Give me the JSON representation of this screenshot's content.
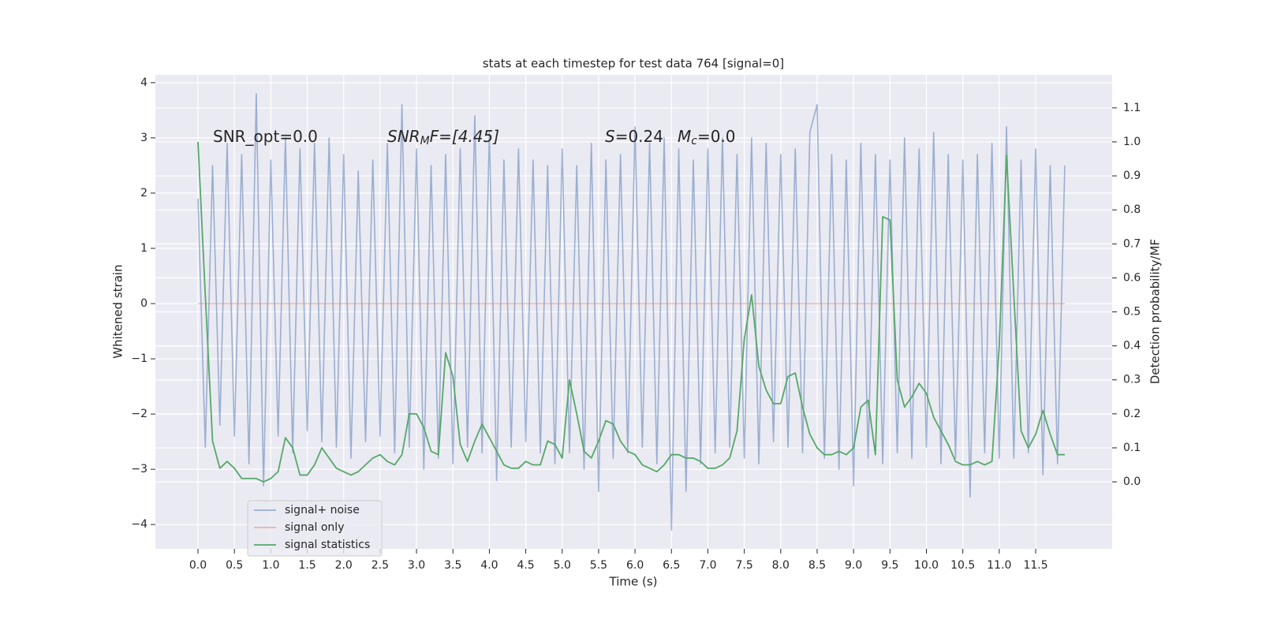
{
  "chart_data": {
    "type": "line",
    "title": "stats at each timestep for test data 764 [signal=0]",
    "xlabel": "Time (s)",
    "ylabel": "Whitened strain",
    "y2label": "Detection probability/MF",
    "annotations": [
      [
        "SNR_opt=0.0"
      ],
      [
        "SNR",
        "M",
        "F=[4.45]"
      ],
      [
        "S",
        "=0.24"
      ],
      [
        "M",
        "c",
        "=0.0"
      ]
    ],
    "grid": true,
    "legend": "lower left",
    "xlim": [
      -0.585,
      12.55
    ],
    "ylim": [
      -4.44,
      4.14
    ],
    "y2lim": [
      -0.197,
      1.197
    ],
    "xticks": [
      {
        "value": 0,
        "label": "0.0"
      },
      0.5,
      {
        "value": 1,
        "label": "1.0"
      },
      1.5,
      {
        "value": 2,
        "label": "2.0"
      },
      2.5,
      {
        "value": 3,
        "label": "3.0"
      },
      3.5,
      {
        "value": 4,
        "label": "4.0"
      },
      4.5,
      {
        "value": 5,
        "label": "5.0"
      },
      5.5,
      {
        "value": 6,
        "label": "6.0"
      },
      6.5,
      {
        "value": 7,
        "label": "7.0"
      },
      7.5,
      {
        "value": 8,
        "label": "8.0"
      },
      8.5,
      {
        "value": 9,
        "label": "9.0"
      },
      9.5,
      {
        "value": 10,
        "label": "10.0"
      },
      10.5,
      {
        "value": 11,
        "label": "11.0"
      },
      11.5
    ],
    "yticks": [
      {
        "value": -4,
        "label": "−4"
      },
      {
        "value": -3,
        "label": "−3"
      },
      {
        "value": -2,
        "label": "−2"
      },
      {
        "value": -1,
        "label": "−1"
      },
      0,
      1,
      2,
      3,
      4
    ],
    "y2ticks": [
      {
        "value": 0,
        "label": "0.0"
      },
      0.1,
      0.2,
      0.3,
      0.4,
      0.5,
      0.6,
      0.7,
      0.8,
      0.9,
      {
        "value": 1,
        "label": "1.0"
      },
      1.1
    ],
    "x": [
      0,
      0.1,
      0.2,
      0.3,
      0.4,
      0.5,
      0.6,
      0.7,
      0.8,
      0.9,
      1.0,
      1.1,
      1.2,
      1.3,
      1.4,
      1.5,
      1.6,
      1.7,
      1.8,
      1.9,
      2.0,
      2.1,
      2.2,
      2.3,
      2.4,
      2.5,
      2.6,
      2.7,
      2.8,
      2.9,
      3.0,
      3.1,
      3.2,
      3.3,
      3.4,
      3.5,
      3.6,
      3.7,
      3.8,
      3.9,
      4.0,
      4.1,
      4.2,
      4.3,
      4.4,
      4.5,
      4.6,
      4.7,
      4.8,
      4.9,
      5.0,
      5.1,
      5.2,
      5.3,
      5.4,
      5.5,
      5.6,
      5.7,
      5.8,
      5.9,
      6.0,
      6.1,
      6.2,
      6.3,
      6.4,
      6.5,
      6.6,
      6.7,
      6.8,
      6.9,
      7.0,
      7.1,
      7.2,
      7.3,
      7.4,
      7.5,
      7.6,
      7.7,
      7.8,
      7.9,
      8.0,
      8.1,
      8.2,
      8.3,
      8.4,
      8.5,
      8.6,
      8.7,
      8.8,
      8.9,
      9.0,
      9.1,
      9.2,
      9.3,
      9.4,
      9.5,
      9.6,
      9.7,
      9.8,
      9.9,
      10.0,
      10.1,
      10.2,
      10.3,
      10.4,
      10.5,
      10.6,
      10.7,
      10.8,
      10.9,
      11.0,
      11.1,
      11.2,
      11.3,
      11.4,
      11.5,
      11.6,
      11.7,
      11.8,
      11.9
    ],
    "series": [
      {
        "name": "signal+ noise",
        "color": "#4c72b0",
        "alpha": 0.5,
        "values": [
          1.9,
          -2.6,
          2.5,
          -2.2,
          2.9,
          -2.4,
          2.7,
          -2.9,
          3.8,
          -3.3,
          2.6,
          -2.4,
          3.0,
          -2.7,
          2.8,
          -2.3,
          2.9,
          -2.5,
          3.0,
          -2.6,
          2.7,
          -2.8,
          2.4,
          -2.5,
          2.6,
          -2.4,
          2.9,
          -2.7,
          3.6,
          -2.6,
          2.8,
          -3.0,
          2.5,
          -2.8,
          2.7,
          -2.9,
          2.8,
          -2.6,
          3.4,
          -2.7,
          3.1,
          -3.2,
          2.6,
          -2.6,
          2.8,
          -2.5,
          2.6,
          -2.7,
          2.5,
          -2.9,
          2.8,
          -2.7,
          2.5,
          -3.0,
          2.9,
          -3.4,
          2.6,
          -2.8,
          2.7,
          -2.7,
          3.2,
          -2.6,
          2.9,
          -2.9,
          3.0,
          -4.1,
          2.8,
          -3.4,
          2.6,
          -2.9,
          2.8,
          -2.7,
          3.0,
          -2.6,
          2.7,
          -2.8,
          3.0,
          -2.9,
          2.9,
          -2.5,
          2.7,
          -2.6,
          2.8,
          -2.7,
          3.1,
          3.6,
          -2.8,
          2.7,
          -3.0,
          2.6,
          -3.3,
          2.9,
          -2.8,
          2.7,
          -2.9,
          2.6,
          -2.7,
          3.0,
          -2.8,
          2.8,
          -2.6,
          3.1,
          -2.9,
          2.7,
          -2.8,
          2.6,
          -3.5,
          2.7,
          -2.7,
          2.9,
          -2.8,
          3.2,
          -2.8,
          2.6,
          -2.7,
          2.8,
          -3.1,
          2.5,
          -2.9,
          2.5
        ]
      },
      {
        "name": "signal only",
        "color": "#dd8452",
        "alpha": 0.5,
        "values": [
          0,
          0,
          0,
          0,
          0,
          0,
          0,
          0,
          0,
          0,
          0,
          0,
          0,
          0,
          0,
          0,
          0,
          0,
          0,
          0,
          0,
          0,
          0,
          0,
          0,
          0,
          0,
          0,
          0,
          0,
          0,
          0,
          0,
          0,
          0,
          0,
          0,
          0,
          0,
          0,
          0,
          0,
          0,
          0,
          0,
          0,
          0,
          0,
          0,
          0,
          0,
          0,
          0,
          0,
          0,
          0,
          0,
          0,
          0,
          0,
          0,
          0,
          0,
          0,
          0,
          0,
          0,
          0,
          0,
          0,
          0,
          0,
          0,
          0,
          0,
          0,
          0,
          0,
          0,
          0,
          0,
          0,
          0,
          0,
          0,
          0,
          0,
          0,
          0,
          0,
          0,
          0,
          0,
          0,
          0,
          0,
          0,
          0,
          0,
          0,
          0,
          0,
          0,
          0,
          0,
          0,
          0,
          0,
          0,
          0,
          0,
          0,
          0,
          0,
          0,
          0,
          0,
          0,
          0,
          0
        ]
      },
      {
        "name": "signal statistics",
        "color": "#55a868",
        "alpha": 1,
        "axis": "y2",
        "values": [
          1.0,
          0.55,
          0.12,
          0.04,
          0.06,
          0.04,
          0.01,
          0.01,
          0.01,
          0.0,
          0.01,
          0.03,
          0.13,
          0.1,
          0.02,
          0.02,
          0.05,
          0.1,
          0.07,
          0.04,
          0.03,
          0.02,
          0.03,
          0.05,
          0.07,
          0.08,
          0.06,
          0.05,
          0.08,
          0.2,
          0.2,
          0.16,
          0.09,
          0.08,
          0.38,
          0.31,
          0.11,
          0.06,
          0.12,
          0.17,
          0.13,
          0.09,
          0.05,
          0.04,
          0.04,
          0.06,
          0.05,
          0.05,
          0.12,
          0.11,
          0.07,
          0.3,
          0.2,
          0.09,
          0.07,
          0.12,
          0.18,
          0.17,
          0.12,
          0.09,
          0.08,
          0.05,
          0.04,
          0.03,
          0.05,
          0.08,
          0.08,
          0.07,
          0.07,
          0.06,
          0.04,
          0.04,
          0.05,
          0.07,
          0.15,
          0.42,
          0.55,
          0.34,
          0.27,
          0.23,
          0.23,
          0.31,
          0.32,
          0.22,
          0.14,
          0.1,
          0.08,
          0.08,
          0.09,
          0.08,
          0.1,
          0.22,
          0.24,
          0.08,
          0.78,
          0.77,
          0.3,
          0.22,
          0.25,
          0.29,
          0.26,
          0.19,
          0.15,
          0.11,
          0.06,
          0.05,
          0.05,
          0.06,
          0.05,
          0.06,
          0.4,
          0.96,
          0.55,
          0.15,
          0.1,
          0.14,
          0.21,
          0.14,
          0.08,
          0.08
        ]
      }
    ]
  }
}
